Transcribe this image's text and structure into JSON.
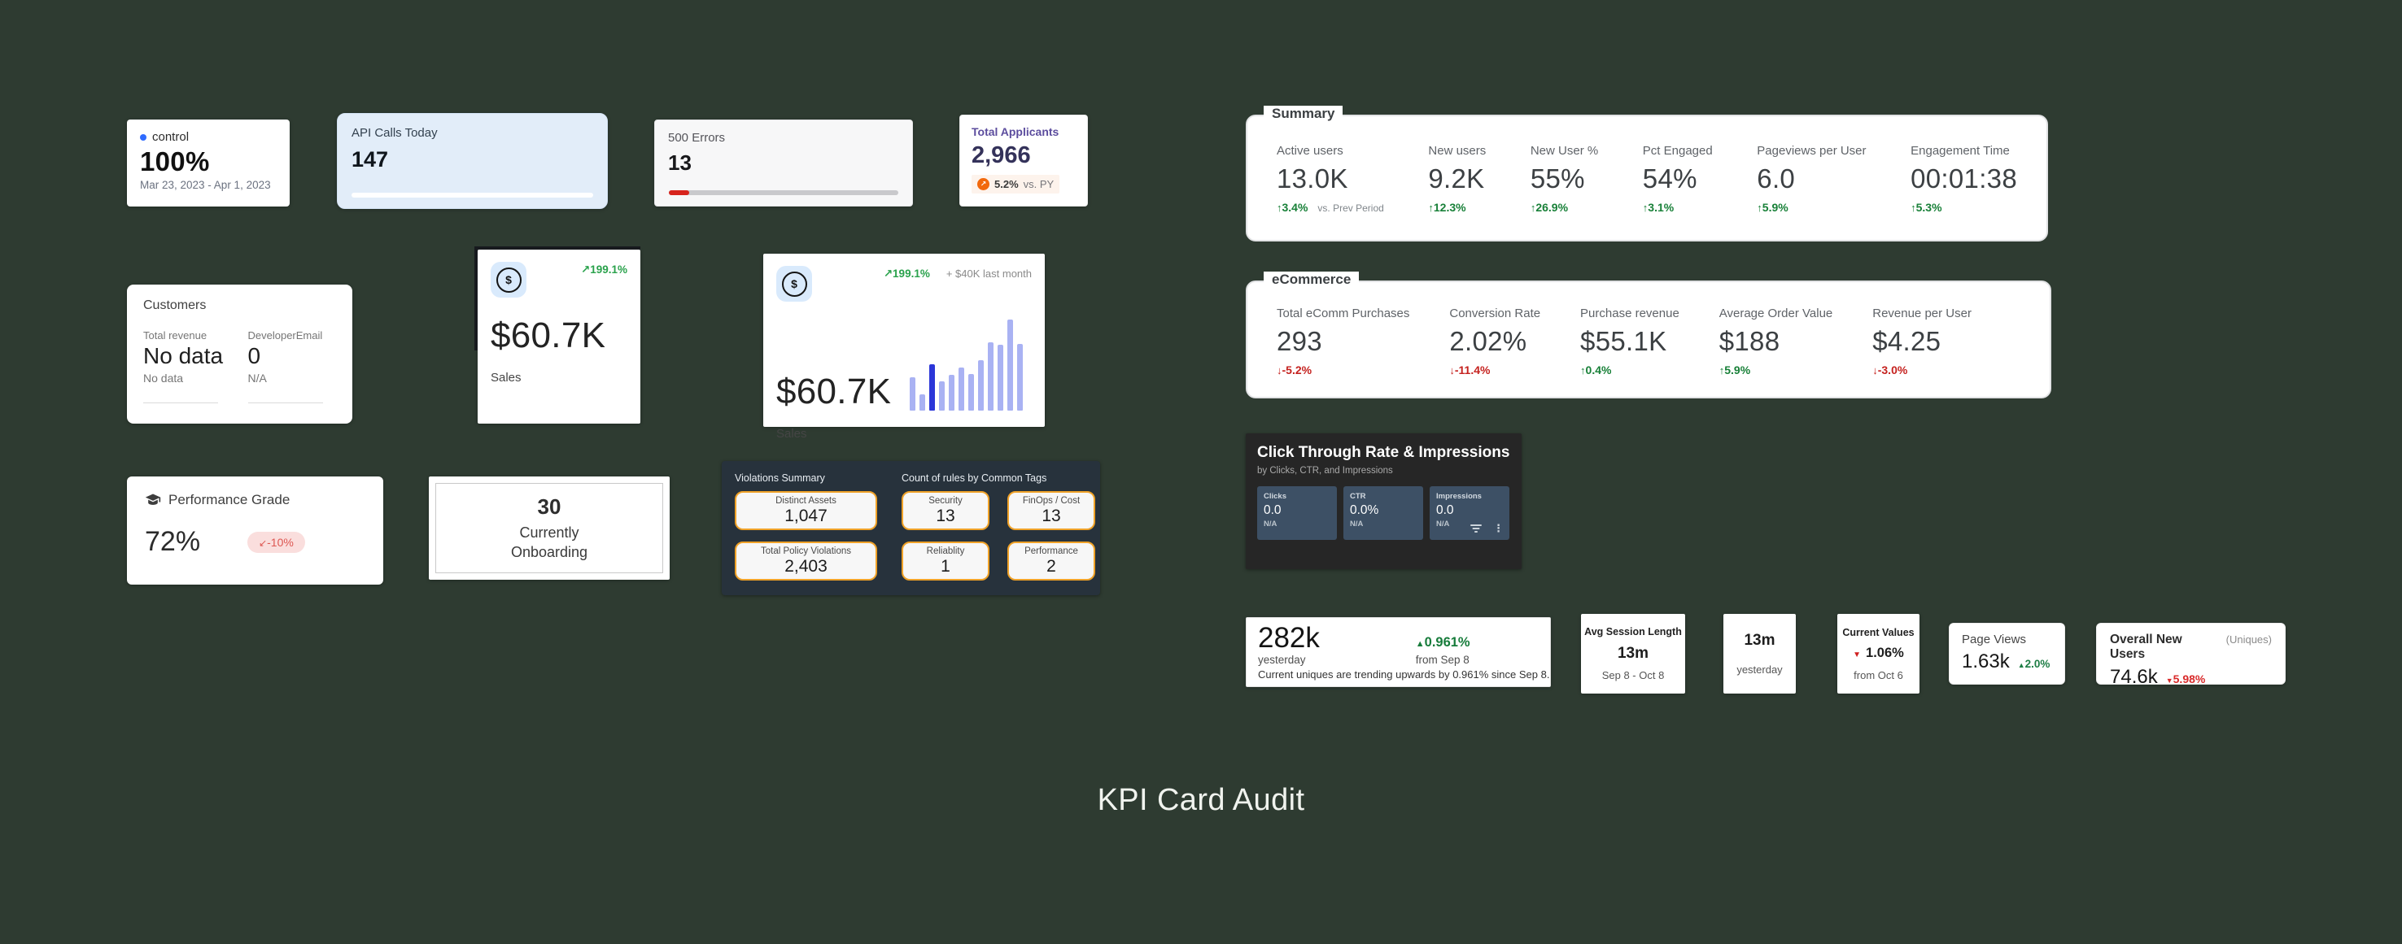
{
  "page": {
    "title": "KPI Card Audit",
    "background_color": "#2e3b31"
  },
  "colors": {
    "positive_green": "#188038",
    "negative_red": "#c5221f",
    "sales_green": "#2aa24c",
    "accent_purple": "#5c4d9e",
    "accent_orange": "#f2690d",
    "pill_border_orange": "#f0a228",
    "violations_card_bg": "#27323c",
    "ctr_card_bg": "#262626",
    "ctr_tile_bg": "#3d5065"
  },
  "cards": {
    "control": {
      "label": "control",
      "value": "100%",
      "date_range": "Mar 23, 2023 - Apr 1, 2023"
    },
    "api_calls": {
      "title": "API Calls Today",
      "value": "147",
      "progress_pct": 100
    },
    "errors_500": {
      "title": "500 Errors",
      "value": "13",
      "progress_pct": 9
    },
    "total_applicants": {
      "title": "Total Applicants",
      "value": "2,966",
      "delta": "5.2%",
      "suffix": "vs. PY"
    },
    "customers": {
      "title": "Customers",
      "metrics": [
        {
          "label": "Total revenue",
          "value": "No data",
          "sub": "No data"
        },
        {
          "label": "DeveloperEmail",
          "value": "0",
          "sub": "N/A"
        }
      ]
    },
    "sales_simple": {
      "delta": "199.1%",
      "value": "$60.7K",
      "label": "Sales"
    },
    "sales_chart": {
      "delta": "199.1%",
      "note": "+ $40K last month",
      "value": "$60.7K",
      "label": "Sales"
    },
    "performance": {
      "title": "Performance Grade",
      "value": "72%",
      "delta": "-10%"
    },
    "onboarding": {
      "value": "30",
      "label": "Currently Onboarding"
    },
    "violations": {
      "left_title": "Violations Summary",
      "right_title": "Count of rules by Common Tags",
      "left_pills": [
        {
          "label": "Distinct Assets",
          "value": "1,047"
        },
        {
          "label": "Total Policy Violations",
          "value": "2,403"
        }
      ],
      "right_pills": [
        {
          "label": "Security",
          "value": "13"
        },
        {
          "label": "FinOps / Cost",
          "value": "13"
        },
        {
          "label": "Reliablity",
          "value": "1"
        },
        {
          "label": "Performance",
          "value": "2"
        }
      ]
    },
    "summary": {
      "title": "Summary",
      "metrics": [
        {
          "label": "Active users",
          "value": "13.0K",
          "delta": "3.4%",
          "suffix": "vs. Prev Period"
        },
        {
          "label": "New users",
          "value": "9.2K",
          "delta": "12.3%"
        },
        {
          "label": "New User %",
          "value": "55%",
          "delta": "26.9%"
        },
        {
          "label": "Pct Engaged",
          "value": "54%",
          "delta": "3.1%"
        },
        {
          "label": "Pageviews per User",
          "value": "6.0",
          "delta": "5.9%"
        },
        {
          "label": "Engagement Time",
          "value": "00:01:38",
          "delta": "5.3%"
        }
      ]
    },
    "ecommerce": {
      "title": "eCommerce",
      "metrics": [
        {
          "label": "Total eComm Purchases",
          "value": "293",
          "delta": "-5.2%"
        },
        {
          "label": "Conversion Rate",
          "value": "2.02%",
          "delta": "-11.4%"
        },
        {
          "label": "Purchase revenue",
          "value": "$55.1K",
          "delta": "0.4%"
        },
        {
          "label": "Average Order Value",
          "value": "$188",
          "delta": "5.9%"
        },
        {
          "label": "Revenue per User",
          "value": "$4.25",
          "delta": "-3.0%"
        }
      ]
    },
    "ctr": {
      "title": "Click Through Rate & Impressions",
      "subtitle": "by Clicks, CTR, and Impressions",
      "tiles": [
        {
          "label": "Clicks",
          "value": "0.0",
          "sub": "N/A"
        },
        {
          "label": "CTR",
          "value": "0.0%",
          "sub": "N/A"
        },
        {
          "label": "Impressions",
          "value": "0.0",
          "sub": "N/A"
        }
      ]
    },
    "uniques": {
      "value": "282k",
      "value_caption": "yesterday",
      "delta": "0.961%",
      "delta_caption": "from Sep 8",
      "description": "Current uniques are trending upwards by 0.961% since Sep 8."
    },
    "avg_session": {
      "title": "Avg Session Length",
      "value": "13m",
      "caption": "Sep 8 - Oct 8"
    },
    "yesterday": {
      "value": "13m",
      "caption": "yesterday"
    },
    "current_values": {
      "title": "Current Values",
      "value": "1.06%",
      "caption": "from Oct 6"
    },
    "page_views": {
      "title": "Page Views",
      "value": "1.63k",
      "delta": "2.0%"
    },
    "overall_new_users": {
      "title": "Overall New Users",
      "title_suffix": "(Uniques)",
      "value": "74.6k",
      "delta": "5.98%"
    }
  },
  "chart_data": {
    "type": "bar",
    "context": "sales-card-sparkline",
    "values": [
      37,
      18,
      51,
      32,
      39,
      47,
      40,
      55,
      75,
      72,
      100,
      73
    ],
    "highlight_index": 2,
    "ylim": [
      0,
      100
    ],
    "bar_color": "#a9b2f3",
    "highlight_color": "#2b36d8"
  }
}
